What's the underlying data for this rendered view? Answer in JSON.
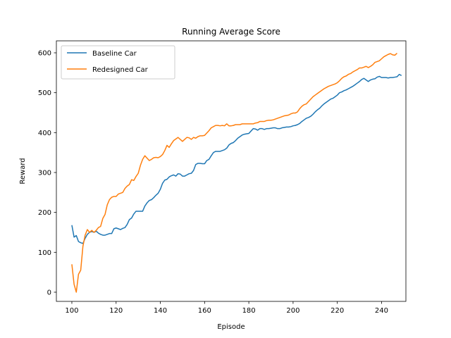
{
  "chart_data": {
    "type": "line",
    "title": "Running Average Score",
    "xlabel": "Episode",
    "ylabel": "Reward",
    "xlim": [
      93,
      251
    ],
    "ylim": [
      -23,
      630
    ],
    "xticks": [
      100,
      120,
      140,
      160,
      180,
      200,
      220,
      240
    ],
    "yticks": [
      0,
      100,
      200,
      300,
      400,
      500,
      600
    ],
    "grid": false,
    "legend_position": "top-left",
    "series": [
      {
        "name": "Baseline Car",
        "color": "#1f77b4",
        "points": [
          [
            100,
            168
          ],
          [
            101,
            138
          ],
          [
            102,
            142
          ],
          [
            103,
            127
          ],
          [
            104,
            124
          ],
          [
            105,
            122
          ],
          [
            106,
            135
          ],
          [
            107,
            145
          ],
          [
            108,
            150
          ],
          [
            109,
            152
          ],
          [
            110,
            150
          ],
          [
            111,
            153
          ],
          [
            112,
            148
          ],
          [
            113,
            145
          ],
          [
            114,
            143
          ],
          [
            115,
            143
          ],
          [
            116,
            145
          ],
          [
            117,
            147
          ],
          [
            118,
            147
          ],
          [
            119,
            159
          ],
          [
            120,
            161
          ],
          [
            121,
            159
          ],
          [
            122,
            157
          ],
          [
            123,
            160
          ],
          [
            124,
            162
          ],
          [
            125,
            170
          ],
          [
            126,
            182
          ],
          [
            127,
            186
          ],
          [
            128,
            196
          ],
          [
            129,
            203
          ],
          [
            130,
            203
          ],
          [
            131,
            203
          ],
          [
            132,
            203
          ],
          [
            133,
            216
          ],
          [
            134,
            224
          ],
          [
            135,
            230
          ],
          [
            136,
            232
          ],
          [
            137,
            237
          ],
          [
            138,
            243
          ],
          [
            139,
            248
          ],
          [
            140,
            258
          ],
          [
            141,
            273
          ],
          [
            142,
            281
          ],
          [
            143,
            283
          ],
          [
            144,
            289
          ],
          [
            145,
            292
          ],
          [
            146,
            294
          ],
          [
            147,
            291
          ],
          [
            148,
            297
          ],
          [
            149,
            296
          ],
          [
            150,
            291
          ],
          [
            151,
            291
          ],
          [
            152,
            294
          ],
          [
            153,
            297
          ],
          [
            154,
            298
          ],
          [
            155,
            305
          ],
          [
            156,
            320
          ],
          [
            157,
            323
          ],
          [
            158,
            323
          ],
          [
            159,
            322
          ],
          [
            160,
            322
          ],
          [
            161,
            330
          ],
          [
            162,
            333
          ],
          [
            163,
            342
          ],
          [
            164,
            350
          ],
          [
            165,
            353
          ],
          [
            166,
            353
          ],
          [
            167,
            353
          ],
          [
            168,
            355
          ],
          [
            169,
            357
          ],
          [
            170,
            361
          ],
          [
            171,
            369
          ],
          [
            172,
            373
          ],
          [
            173,
            375
          ],
          [
            174,
            380
          ],
          [
            175,
            386
          ],
          [
            176,
            390
          ],
          [
            177,
            394
          ],
          [
            178,
            396
          ],
          [
            179,
            397
          ],
          [
            180,
            398
          ],
          [
            181,
            404
          ],
          [
            182,
            410
          ],
          [
            183,
            409
          ],
          [
            184,
            406
          ],
          [
            185,
            410
          ],
          [
            186,
            410
          ],
          [
            187,
            408
          ],
          [
            188,
            410
          ],
          [
            189,
            410
          ],
          [
            190,
            411
          ],
          [
            191,
            412
          ],
          [
            192,
            412
          ],
          [
            193,
            410
          ],
          [
            194,
            410
          ],
          [
            195,
            412
          ],
          [
            196,
            413
          ],
          [
            197,
            414
          ],
          [
            198,
            414
          ],
          [
            199,
            415
          ],
          [
            200,
            417
          ],
          [
            201,
            418
          ],
          [
            202,
            420
          ],
          [
            203,
            423
          ],
          [
            204,
            428
          ],
          [
            205,
            432
          ],
          [
            206,
            436
          ],
          [
            207,
            438
          ],
          [
            208,
            441
          ],
          [
            209,
            446
          ],
          [
            210,
            452
          ],
          [
            211,
            457
          ],
          [
            212,
            461
          ],
          [
            213,
            467
          ],
          [
            214,
            472
          ],
          [
            215,
            476
          ],
          [
            216,
            480
          ],
          [
            217,
            484
          ],
          [
            218,
            486
          ],
          [
            219,
            490
          ],
          [
            220,
            494
          ],
          [
            221,
            500
          ],
          [
            222,
            502
          ],
          [
            223,
            505
          ],
          [
            224,
            507
          ],
          [
            225,
            510
          ],
          [
            226,
            513
          ],
          [
            227,
            516
          ],
          [
            228,
            520
          ],
          [
            229,
            524
          ],
          [
            230,
            528
          ],
          [
            231,
            533
          ],
          [
            232,
            536
          ],
          [
            233,
            532
          ],
          [
            234,
            528
          ],
          [
            235,
            532
          ],
          [
            236,
            534
          ],
          [
            237,
            535
          ],
          [
            238,
            539
          ],
          [
            239,
            541
          ],
          [
            240,
            538
          ],
          [
            241,
            538
          ],
          [
            242,
            538
          ],
          [
            243,
            537
          ],
          [
            244,
            538
          ],
          [
            245,
            538
          ],
          [
            246,
            539
          ],
          [
            247,
            540
          ],
          [
            248,
            546
          ],
          [
            249,
            543
          ]
        ]
      },
      {
        "name": "Redesigned Car",
        "color": "#ff7f0e",
        "points": [
          [
            100,
            70
          ],
          [
            101,
            20
          ],
          [
            102,
            0
          ],
          [
            103,
            45
          ],
          [
            104,
            55
          ],
          [
            105,
            115
          ],
          [
            106,
            143
          ],
          [
            107,
            157
          ],
          [
            108,
            150
          ],
          [
            109,
            155
          ],
          [
            110,
            150
          ],
          [
            111,
            155
          ],
          [
            112,
            162
          ],
          [
            113,
            165
          ],
          [
            114,
            185
          ],
          [
            115,
            195
          ],
          [
            116,
            219
          ],
          [
            117,
            232
          ],
          [
            118,
            238
          ],
          [
            119,
            240
          ],
          [
            120,
            240
          ],
          [
            121,
            246
          ],
          [
            122,
            248
          ],
          [
            123,
            250
          ],
          [
            124,
            260
          ],
          [
            125,
            266
          ],
          [
            126,
            270
          ],
          [
            127,
            282
          ],
          [
            128,
            280
          ],
          [
            129,
            290
          ],
          [
            130,
            298
          ],
          [
            131,
            318
          ],
          [
            132,
            333
          ],
          [
            133,
            342
          ],
          [
            134,
            336
          ],
          [
            135,
            330
          ],
          [
            136,
            333
          ],
          [
            137,
            337
          ],
          [
            138,
            338
          ],
          [
            139,
            337
          ],
          [
            140,
            340
          ],
          [
            141,
            345
          ],
          [
            142,
            355
          ],
          [
            143,
            368
          ],
          [
            144,
            363
          ],
          [
            145,
            372
          ],
          [
            146,
            380
          ],
          [
            147,
            384
          ],
          [
            148,
            388
          ],
          [
            149,
            383
          ],
          [
            150,
            378
          ],
          [
            151,
            383
          ],
          [
            152,
            388
          ],
          [
            153,
            387
          ],
          [
            154,
            383
          ],
          [
            155,
            388
          ],
          [
            156,
            386
          ],
          [
            157,
            390
          ],
          [
            158,
            392
          ],
          [
            159,
            392
          ],
          [
            160,
            393
          ],
          [
            161,
            399
          ],
          [
            162,
            405
          ],
          [
            163,
            412
          ],
          [
            164,
            415
          ],
          [
            165,
            418
          ],
          [
            166,
            418
          ],
          [
            167,
            417
          ],
          [
            168,
            418
          ],
          [
            169,
            417
          ],
          [
            170,
            422
          ],
          [
            171,
            417
          ],
          [
            172,
            417
          ],
          [
            173,
            418
          ],
          [
            174,
            420
          ],
          [
            175,
            420
          ],
          [
            176,
            420
          ],
          [
            177,
            422
          ],
          [
            178,
            422
          ],
          [
            179,
            422
          ],
          [
            180,
            422
          ],
          [
            181,
            422
          ],
          [
            182,
            422
          ],
          [
            183,
            424
          ],
          [
            184,
            425
          ],
          [
            185,
            428
          ],
          [
            186,
            428
          ],
          [
            187,
            428
          ],
          [
            188,
            430
          ],
          [
            189,
            431
          ],
          [
            190,
            431
          ],
          [
            191,
            432
          ],
          [
            192,
            434
          ],
          [
            193,
            436
          ],
          [
            194,
            438
          ],
          [
            195,
            440
          ],
          [
            196,
            442
          ],
          [
            197,
            443
          ],
          [
            198,
            444
          ],
          [
            199,
            447
          ],
          [
            200,
            449
          ],
          [
            201,
            449
          ],
          [
            202,
            452
          ],
          [
            203,
            460
          ],
          [
            204,
            466
          ],
          [
            205,
            470
          ],
          [
            206,
            472
          ],
          [
            207,
            478
          ],
          [
            208,
            484
          ],
          [
            209,
            490
          ],
          [
            210,
            494
          ],
          [
            211,
            498
          ],
          [
            212,
            502
          ],
          [
            213,
            506
          ],
          [
            214,
            510
          ],
          [
            215,
            513
          ],
          [
            216,
            516
          ],
          [
            217,
            518
          ],
          [
            218,
            520
          ],
          [
            219,
            522
          ],
          [
            220,
            525
          ],
          [
            221,
            530
          ],
          [
            222,
            536
          ],
          [
            223,
            540
          ],
          [
            224,
            542
          ],
          [
            225,
            546
          ],
          [
            226,
            548
          ],
          [
            227,
            552
          ],
          [
            228,
            555
          ],
          [
            229,
            558
          ],
          [
            230,
            562
          ],
          [
            231,
            562
          ],
          [
            232,
            564
          ],
          [
            233,
            566
          ],
          [
            234,
            563
          ],
          [
            235,
            566
          ],
          [
            236,
            570
          ],
          [
            237,
            576
          ],
          [
            238,
            578
          ],
          [
            239,
            580
          ],
          [
            240,
            585
          ],
          [
            241,
            590
          ],
          [
            242,
            593
          ],
          [
            243,
            596
          ],
          [
            244,
            598
          ],
          [
            245,
            595
          ],
          [
            246,
            594
          ],
          [
            247,
            599
          ]
        ]
      }
    ]
  }
}
